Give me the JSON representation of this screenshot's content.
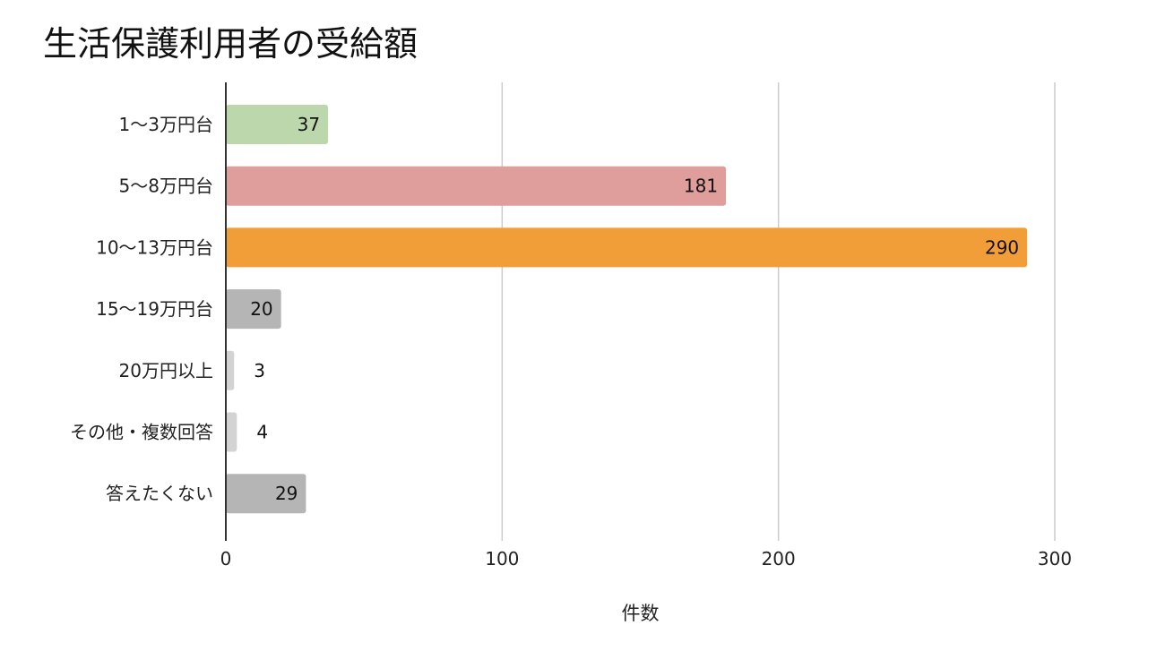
{
  "chart_data": {
    "type": "bar",
    "orientation": "horizontal",
    "title": "生活保護利用者の受給額",
    "xlabel": "件数",
    "ylabel": "",
    "categories": [
      "1〜3万円台",
      "5〜8万円台",
      "10〜13万円台",
      "15〜19万円台",
      "20万円以上",
      "その他・複数回答",
      "答えたくない"
    ],
    "values": [
      37,
      181,
      290,
      20,
      3,
      4,
      29
    ],
    "colors": [
      "#bdd7ad",
      "#df9d9b",
      "#f19d38",
      "#b5b5b5",
      "#d3d3d3",
      "#d3d3d3",
      "#b5b5b5"
    ],
    "xlim": [
      0,
      300
    ],
    "xticks": [
      0,
      100,
      200,
      300
    ],
    "grid": true,
    "data_labels": true
  }
}
